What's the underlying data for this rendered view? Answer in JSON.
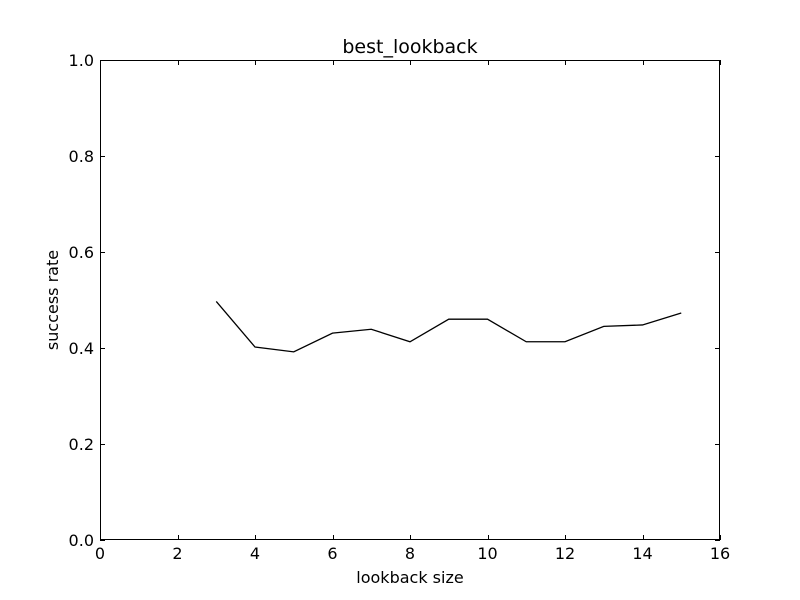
{
  "chart_data": {
    "type": "line",
    "title": "best_lookback",
    "xlabel": "lookback size",
    "ylabel": "success rate",
    "xlim": [
      0,
      16
    ],
    "ylim": [
      0.0,
      1.0
    ],
    "xticks": [
      0,
      2,
      4,
      6,
      8,
      10,
      12,
      14,
      16
    ],
    "xtick_labels": [
      "0",
      "2",
      "4",
      "6",
      "8",
      "10",
      "12",
      "14",
      "16"
    ],
    "yticks": [
      0.0,
      0.2,
      0.4,
      0.6,
      0.8,
      1.0
    ],
    "ytick_labels": [
      "0.0",
      "0.2",
      "0.4",
      "0.6",
      "0.8",
      "1.0"
    ],
    "grid": false,
    "legend": "none",
    "series": [
      {
        "color": "#000000",
        "x": [
          3,
          4,
          5,
          6,
          7,
          8,
          9,
          10,
          11,
          12,
          13,
          14,
          15
        ],
        "y": [
          0.497,
          0.402,
          0.392,
          0.431,
          0.439,
          0.413,
          0.46,
          0.46,
          0.413,
          0.413,
          0.445,
          0.448,
          0.473
        ]
      }
    ]
  }
}
